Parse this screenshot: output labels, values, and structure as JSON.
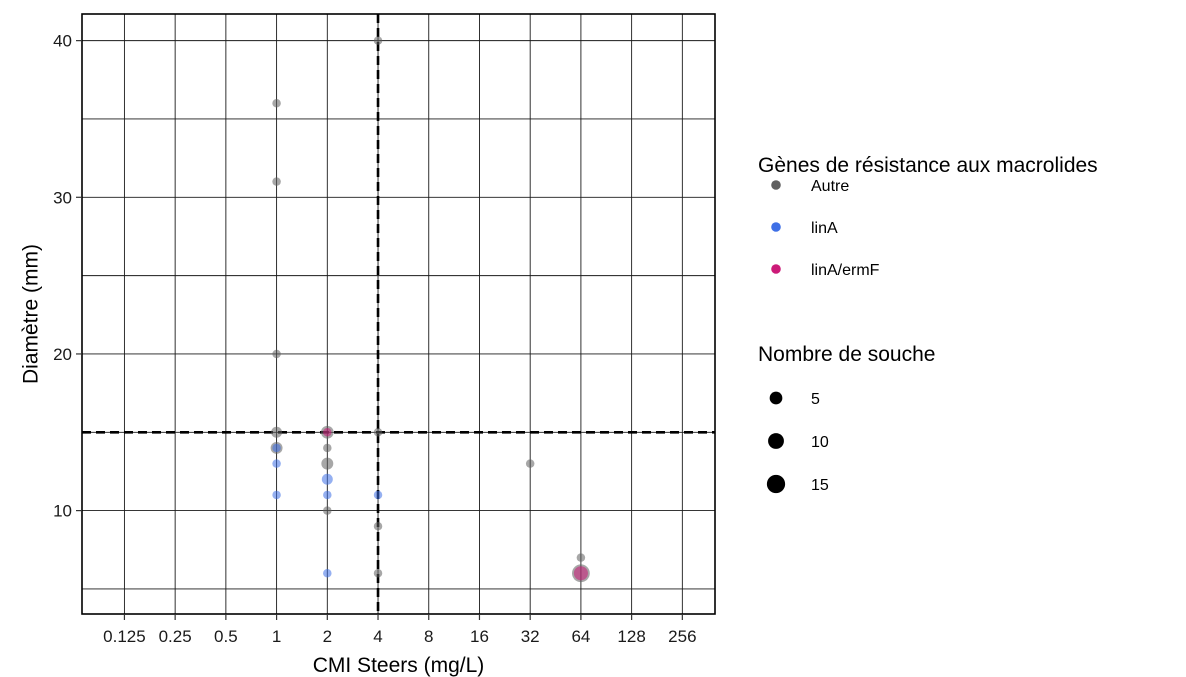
{
  "chart_data": {
    "type": "scatter",
    "xlabel": "CMI Steers (mg/L)",
    "ylabel": "Diamètre (mm)",
    "x_scale": "log2",
    "x_ticks": [
      0.125,
      0.25,
      0.5,
      1,
      2,
      4,
      8,
      16,
      32,
      64,
      128,
      256
    ],
    "x_tick_labels": [
      "0.125",
      "0.25",
      "0.5",
      "1",
      "2",
      "4",
      "8",
      "16",
      "32",
      "64",
      "128",
      "256"
    ],
    "xlim": [
      0.07,
      400
    ],
    "y_ticks": [
      10,
      20,
      30,
      40
    ],
    "y_tick_labels": [
      "10",
      "20",
      "30",
      "40"
    ],
    "y_minor_gridlines": [
      5,
      15,
      25,
      35
    ],
    "ylim": [
      3.4,
      41.7
    ],
    "grid": true,
    "breakpoints": {
      "x": 4,
      "y": 15,
      "style": "dashed"
    },
    "legend": {
      "placement": "right",
      "color_title": "Gènes de résistance aux macrolides",
      "color_entries": [
        {
          "label": "Autre",
          "color": "#5f5f5f"
        },
        {
          "label": "linA",
          "color": "#3e6fe6"
        },
        {
          "label": "linA/ermF",
          "color": "#cc1a78"
        }
      ],
      "size_title": "Nombre de souche",
      "size_entries": [
        {
          "label": "5",
          "value": 5
        },
        {
          "label": "10",
          "value": 10
        },
        {
          "label": "15",
          "value": 15
        }
      ]
    },
    "series": [
      {
        "name": "Autre",
        "color": "#5f5f5f",
        "points": [
          {
            "x": 1,
            "y": 36,
            "n": 1
          },
          {
            "x": 1,
            "y": 31,
            "n": 1
          },
          {
            "x": 1,
            "y": 20,
            "n": 1
          },
          {
            "x": 1,
            "y": 15,
            "n": 3
          },
          {
            "x": 1,
            "y": 14,
            "n": 4
          },
          {
            "x": 2,
            "y": 15,
            "n": 5
          },
          {
            "x": 2,
            "y": 14,
            "n": 1
          },
          {
            "x": 2,
            "y": 13,
            "n": 4
          },
          {
            "x": 2,
            "y": 10,
            "n": 1
          },
          {
            "x": 4,
            "y": 40,
            "n": 1
          },
          {
            "x": 4,
            "y": 15,
            "n": 1
          },
          {
            "x": 4,
            "y": 9,
            "n": 1
          },
          {
            "x": 4,
            "y": 6,
            "n": 1
          },
          {
            "x": 32,
            "y": 13,
            "n": 1
          },
          {
            "x": 64,
            "y": 7,
            "n": 1
          },
          {
            "x": 64,
            "y": 6,
            "n": 14
          }
        ]
      },
      {
        "name": "linA",
        "color": "#3e6fe6",
        "points": [
          {
            "x": 1,
            "y": 14,
            "n": 1
          },
          {
            "x": 1,
            "y": 13,
            "n": 1
          },
          {
            "x": 1,
            "y": 11,
            "n": 1
          },
          {
            "x": 2,
            "y": 12,
            "n": 3
          },
          {
            "x": 2,
            "y": 11,
            "n": 1
          },
          {
            "x": 2,
            "y": 6,
            "n": 1
          },
          {
            "x": 4,
            "y": 11,
            "n": 1
          }
        ]
      },
      {
        "name": "linA/ermF",
        "color": "#cc1a78",
        "points": [
          {
            "x": 2,
            "y": 15,
            "n": 1
          },
          {
            "x": 64,
            "y": 6,
            "n": 7
          }
        ]
      }
    ]
  }
}
